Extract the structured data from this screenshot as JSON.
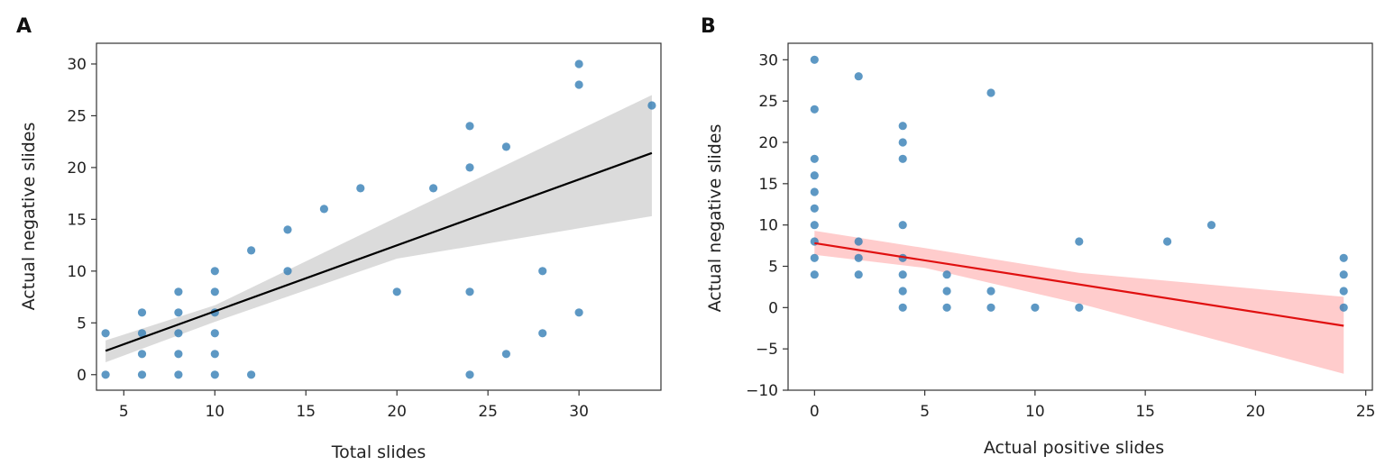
{
  "chart_data": [
    {
      "panel_label": "A",
      "type": "scatter",
      "xlabel": "Total slides",
      "ylabel": "Actual negative slides",
      "xlim": [
        3.5,
        34.5
      ],
      "ylim": [
        -1.5,
        32
      ],
      "xticks": [
        5,
        10,
        15,
        20,
        25,
        30
      ],
      "yticks": [
        0,
        5,
        10,
        15,
        20,
        25,
        30
      ],
      "grid": false,
      "point_color": "#2f7bb4",
      "points": [
        [
          4,
          0
        ],
        [
          4,
          4
        ],
        [
          6,
          0
        ],
        [
          6,
          2
        ],
        [
          6,
          4
        ],
        [
          6,
          6
        ],
        [
          8,
          0
        ],
        [
          8,
          2
        ],
        [
          8,
          4
        ],
        [
          8,
          6
        ],
        [
          8,
          8
        ],
        [
          10,
          0
        ],
        [
          10,
          2
        ],
        [
          10,
          4
        ],
        [
          10,
          6
        ],
        [
          10,
          8
        ],
        [
          10,
          10
        ],
        [
          12,
          0
        ],
        [
          12,
          12
        ],
        [
          14,
          10
        ],
        [
          14,
          14
        ],
        [
          16,
          16
        ],
        [
          18,
          18
        ],
        [
          20,
          8
        ],
        [
          22,
          18
        ],
        [
          24,
          0
        ],
        [
          24,
          8
        ],
        [
          24,
          20
        ],
        [
          24,
          24
        ],
        [
          26,
          2
        ],
        [
          26,
          22
        ],
        [
          28,
          4
        ],
        [
          28,
          10
        ],
        [
          30,
          6
        ],
        [
          30,
          28
        ],
        [
          30,
          30
        ],
        [
          34,
          26
        ]
      ],
      "regression": {
        "color": "#000000",
        "band_color": "#d9d9d9",
        "line": [
          [
            4,
            2.3
          ],
          [
            34,
            21.4
          ]
        ],
        "ci_upper": [
          [
            4,
            3.3
          ],
          [
            10,
            6.7
          ],
          [
            20,
            15.2
          ],
          [
            34,
            27
          ]
        ],
        "ci_lower": [
          [
            4,
            1.2
          ],
          [
            10,
            5.1
          ],
          [
            20,
            11.2
          ],
          [
            34,
            15.3
          ]
        ]
      }
    },
    {
      "panel_label": "B",
      "type": "scatter",
      "xlabel": "Actual positive slides",
      "ylabel": "Actual negative slides",
      "xlim": [
        -1.2,
        25.3
      ],
      "ylim": [
        -10,
        32
      ],
      "xticks": [
        0,
        5,
        10,
        15,
        20,
        25
      ],
      "yticks": [
        -10,
        -5,
        0,
        5,
        10,
        15,
        20,
        25,
        30
      ],
      "grid": false,
      "point_color": "#2f7bb4",
      "points": [
        [
          0,
          4
        ],
        [
          0,
          6
        ],
        [
          0,
          8
        ],
        [
          0,
          10
        ],
        [
          0,
          12
        ],
        [
          0,
          14
        ],
        [
          0,
          16
        ],
        [
          0,
          18
        ],
        [
          0,
          24
        ],
        [
          0,
          30
        ],
        [
          2,
          4
        ],
        [
          2,
          6
        ],
        [
          2,
          8
        ],
        [
          2,
          28
        ],
        [
          4,
          0
        ],
        [
          4,
          2
        ],
        [
          4,
          4
        ],
        [
          4,
          6
        ],
        [
          4,
          10
        ],
        [
          4,
          18
        ],
        [
          4,
          20
        ],
        [
          4,
          22
        ],
        [
          6,
          0
        ],
        [
          6,
          2
        ],
        [
          6,
          4
        ],
        [
          8,
          0
        ],
        [
          8,
          2
        ],
        [
          8,
          26
        ],
        [
          10,
          0
        ],
        [
          12,
          0
        ],
        [
          12,
          8
        ],
        [
          16,
          8
        ],
        [
          18,
          10
        ],
        [
          24,
          0
        ],
        [
          24,
          2
        ],
        [
          24,
          4
        ],
        [
          24,
          6
        ]
      ],
      "regression": {
        "color": "#e01010",
        "band_color": "#ffc9c9",
        "line": [
          [
            0,
            7.8
          ],
          [
            24,
            -2.2
          ]
        ],
        "ci_upper": [
          [
            0,
            9.3
          ],
          [
            5,
            7.2
          ],
          [
            12,
            4.2
          ],
          [
            24,
            1.3
          ]
        ],
        "ci_lower": [
          [
            0,
            6.4
          ],
          [
            5,
            4.8
          ],
          [
            12,
            0.5
          ],
          [
            24,
            -8
          ]
        ]
      }
    }
  ]
}
